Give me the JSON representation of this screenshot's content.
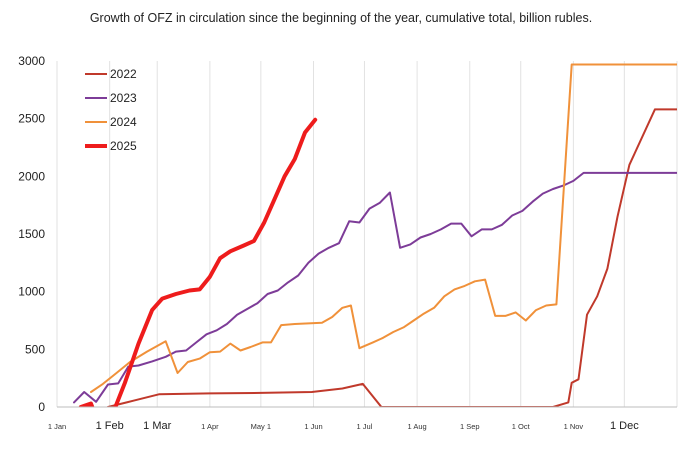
{
  "chart_data": {
    "type": "line",
    "title": "Growth of OFZ in circulation since the beginning of the year, cumulative total, billion rubles.",
    "xlabel": "",
    "ylabel": "",
    "ylim": [
      0,
      3000
    ],
    "y_ticks": [
      "0",
      "500",
      "1000",
      "1500",
      "2000",
      "2500",
      "3000"
    ],
    "x_range_days": [
      0,
      365
    ],
    "grid": "vertical",
    "legend_position": "top-left",
    "x_ticks": [
      {
        "label": "1 Jan",
        "day": 0,
        "size": "small"
      },
      {
        "label": "1 Feb",
        "day": 31,
        "size": "big"
      },
      {
        "label": "1 Mar",
        "day": 59,
        "size": "big"
      },
      {
        "label": "1 Apr",
        "day": 90,
        "size": "small"
      },
      {
        "label": "May 1",
        "day": 120,
        "size": "small"
      },
      {
        "label": "1 Jun",
        "day": 151,
        "size": "small"
      },
      {
        "label": "1 Jul",
        "day": 181,
        "size": "small"
      },
      {
        "label": "1 Aug",
        "day": 212,
        "size": "small"
      },
      {
        "label": "1 Sep",
        "day": 243,
        "size": "small"
      },
      {
        "label": "1 Oct",
        "day": 273,
        "size": "small"
      },
      {
        "label": "1 Nov",
        "day": 304,
        "size": "small"
      },
      {
        "label": "1 Dec",
        "day": 334,
        "size": "big"
      }
    ],
    "series": [
      {
        "name": "2022",
        "color": "#c0392b",
        "width": 2,
        "points": [
          [
            30,
            0
          ],
          [
            45,
            55
          ],
          [
            60,
            110
          ],
          [
            90,
            118
          ],
          [
            120,
            122
          ],
          [
            150,
            130
          ],
          [
            168,
            160
          ],
          [
            180,
            200
          ],
          [
            191,
            0
          ],
          [
            292,
            0
          ],
          [
            301,
            40
          ],
          [
            303,
            210
          ],
          [
            307,
            240
          ],
          [
            312,
            800
          ],
          [
            318,
            960
          ],
          [
            324,
            1200
          ],
          [
            330,
            1650
          ],
          [
            337,
            2100
          ],
          [
            352,
            2580
          ],
          [
            365,
            2580
          ]
        ]
      },
      {
        "name": "2023",
        "color": "#7d3c98",
        "width": 2,
        "points": [
          [
            10,
            40
          ],
          [
            16,
            130
          ],
          [
            23,
            45
          ],
          [
            30,
            195
          ],
          [
            36,
            205
          ],
          [
            42,
            350
          ],
          [
            48,
            360
          ],
          [
            56,
            395
          ],
          [
            64,
            435
          ],
          [
            70,
            480
          ],
          [
            76,
            490
          ],
          [
            82,
            560
          ],
          [
            88,
            630
          ],
          [
            94,
            665
          ],
          [
            100,
            720
          ],
          [
            106,
            800
          ],
          [
            112,
            850
          ],
          [
            118,
            900
          ],
          [
            124,
            980
          ],
          [
            130,
            1010
          ],
          [
            136,
            1080
          ],
          [
            142,
            1140
          ],
          [
            148,
            1250
          ],
          [
            154,
            1330
          ],
          [
            160,
            1380
          ],
          [
            166,
            1420
          ],
          [
            172,
            1610
          ],
          [
            178,
            1600
          ],
          [
            184,
            1720
          ],
          [
            190,
            1770
          ],
          [
            196,
            1860
          ],
          [
            202,
            1380
          ],
          [
            208,
            1410
          ],
          [
            214,
            1470
          ],
          [
            220,
            1500
          ],
          [
            226,
            1540
          ],
          [
            232,
            1590
          ],
          [
            238,
            1590
          ],
          [
            244,
            1480
          ],
          [
            250,
            1540
          ],
          [
            256,
            1540
          ],
          [
            262,
            1580
          ],
          [
            268,
            1660
          ],
          [
            274,
            1700
          ],
          [
            280,
            1780
          ],
          [
            286,
            1850
          ],
          [
            292,
            1890
          ],
          [
            298,
            1920
          ],
          [
            304,
            1960
          ],
          [
            310,
            2030
          ],
          [
            320,
            2030
          ],
          [
            365,
            2030
          ]
        ]
      },
      {
        "name": "2024",
        "color": "#f0913a",
        "width": 2,
        "points": [
          [
            20,
            130
          ],
          [
            27,
            200
          ],
          [
            35,
            295
          ],
          [
            43,
            390
          ],
          [
            53,
            480
          ],
          [
            64,
            570
          ],
          [
            71,
            295
          ],
          [
            77,
            390
          ],
          [
            84,
            420
          ],
          [
            90,
            475
          ],
          [
            96,
            480
          ],
          [
            102,
            550
          ],
          [
            108,
            490
          ],
          [
            114,
            520
          ],
          [
            121,
            560
          ],
          [
            126,
            560
          ],
          [
            132,
            710
          ],
          [
            140,
            720
          ],
          [
            148,
            725
          ],
          [
            156,
            730
          ],
          [
            162,
            780
          ],
          [
            168,
            860
          ],
          [
            173,
            880
          ],
          [
            178,
            510
          ],
          [
            186,
            560
          ],
          [
            192,
            600
          ],
          [
            198,
            650
          ],
          [
            204,
            690
          ],
          [
            210,
            750
          ],
          [
            216,
            810
          ],
          [
            222,
            860
          ],
          [
            228,
            960
          ],
          [
            234,
            1020
          ],
          [
            240,
            1050
          ],
          [
            246,
            1090
          ],
          [
            252,
            1105
          ],
          [
            258,
            790
          ],
          [
            264,
            790
          ],
          [
            270,
            820
          ],
          [
            276,
            750
          ],
          [
            282,
            840
          ],
          [
            288,
            880
          ],
          [
            294,
            890
          ],
          [
            303,
            2970
          ],
          [
            315,
            2970
          ],
          [
            365,
            2970
          ]
        ]
      },
      {
        "name": "2025",
        "color": "#ee1c1c",
        "width": 4,
        "points": [
          [
            14,
            0
          ],
          [
            20,
            30
          ],
          [
            22,
            -50
          ],
          [
            28,
            -50
          ],
          [
            33,
            -50
          ],
          [
            40,
            210
          ],
          [
            48,
            550
          ],
          [
            56,
            840
          ],
          [
            62,
            940
          ],
          [
            70,
            980
          ],
          [
            78,
            1010
          ],
          [
            84,
            1020
          ],
          [
            90,
            1130
          ],
          [
            96,
            1290
          ],
          [
            102,
            1350
          ],
          [
            110,
            1400
          ],
          [
            116,
            1440
          ],
          [
            122,
            1600
          ],
          [
            128,
            1800
          ],
          [
            134,
            2000
          ],
          [
            140,
            2150
          ],
          [
            146,
            2380
          ],
          [
            152,
            2490
          ]
        ]
      }
    ]
  }
}
